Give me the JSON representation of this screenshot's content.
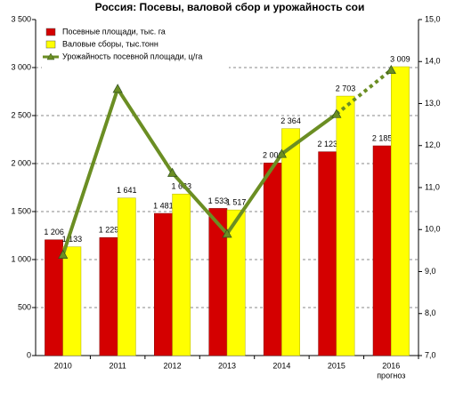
{
  "chart_data": {
    "type": "bar_line",
    "title": "Россия: Посевы, валовой сбор и урожайность сои",
    "categories": [
      "2010",
      "2011",
      "2012",
      "2013",
      "2014",
      "2015",
      "2016"
    ],
    "x_note": "прогноз",
    "series": [
      {
        "name": "Посевные площади, тыс. га",
        "color": "#d40000",
        "type": "bar",
        "values": [
          1206,
          1229,
          1481,
          1533,
          2006,
          2123,
          2185
        ],
        "value_labels": [
          "1 206",
          "1 229",
          "1 481",
          "1 533",
          "2 006",
          "2 123",
          "2 185"
        ]
      },
      {
        "name": "Валовые сборы, тыс.тонн",
        "color": "#ffff00",
        "type": "bar",
        "values": [
          1133,
          1641,
          1683,
          1517,
          2364,
          2703,
          3009
        ],
        "value_labels": [
          "1 133",
          "1 641",
          "1 683",
          "1 517",
          "2 364",
          "2 703",
          "3 009"
        ]
      },
      {
        "name": "Урожайность посевной площади, ц/га",
        "color": "#6b8e23",
        "type": "line",
        "axis": "y2",
        "values": [
          9.4,
          13.35,
          11.35,
          9.9,
          11.8,
          12.75,
          13.8
        ],
        "dotted_from": 5
      }
    ],
    "ylim": [
      0,
      3500
    ],
    "yticks": [
      {
        "value": 0,
        "label": "0"
      },
      {
        "value": 500,
        "label": "500"
      },
      {
        "value": 1000,
        "label": "1 000"
      },
      {
        "value": 1500,
        "label": "1 500"
      },
      {
        "value": 2000,
        "label": "2 000"
      },
      {
        "value": 2500,
        "label": "2 500"
      },
      {
        "value": 3000,
        "label": "3 000"
      },
      {
        "value": 3500,
        "label": "3 500"
      }
    ],
    "y2lim": [
      7,
      15
    ],
    "y2ticks": [
      {
        "value": 7,
        "label": "7,0"
      },
      {
        "value": 8,
        "label": "8,0"
      },
      {
        "value": 9,
        "label": "9,0"
      },
      {
        "value": 10,
        "label": "10,0"
      },
      {
        "value": 11,
        "label": "11,0"
      },
      {
        "value": 12,
        "label": "12,0"
      },
      {
        "value": 13,
        "label": "13,0"
      },
      {
        "value": 14,
        "label": "14,0"
      },
      {
        "value": 15,
        "label": "15,0"
      }
    ],
    "grid": true,
    "legend": "top-left"
  }
}
